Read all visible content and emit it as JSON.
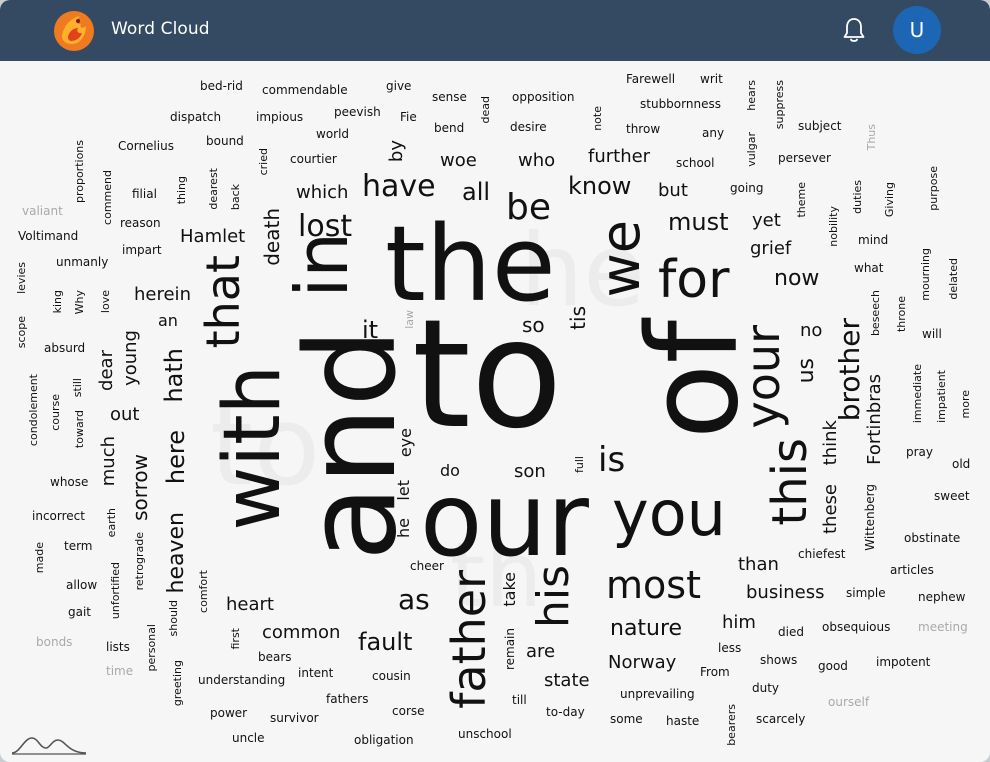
{
  "app": {
    "title": "Word Cloud",
    "avatar_initial": "U"
  },
  "icons": {
    "logo": "phoenix-logo",
    "notifications": "bell-icon",
    "footer": "mountain-icon"
  },
  "colors": {
    "header": "#344a63",
    "avatar": "#1d66b4",
    "word": "#111111",
    "faint_word": "#a9a9a9",
    "background": "#f6f6f6"
  },
  "words": [
    "the",
    "to",
    "and",
    "of",
    "our",
    "in",
    "with",
    "you",
    "that",
    "we",
    "for",
    "your",
    "this",
    "his",
    "father",
    "be",
    "lost",
    "most",
    "have",
    "is",
    "all",
    "know",
    "must",
    "brother",
    "hath",
    "here",
    "heaven",
    "sorrow",
    "Hamlet",
    "death",
    "fault",
    "as",
    "heart",
    "common",
    "nature",
    "Norway",
    "state",
    "business",
    "herein",
    "which",
    "who",
    "woe",
    "further",
    "but",
    "yet",
    "grief",
    "now",
    "no",
    "us",
    "think",
    "these",
    "young",
    "dear",
    "much",
    "out",
    "so",
    "it",
    "an",
    "tis",
    "eye",
    "let",
    "he",
    "do",
    "son",
    "than",
    "him",
    "are",
    "take",
    "remain",
    "Fortinbras",
    "Wittenberg",
    "by",
    "bed-rid",
    "commendable",
    "give",
    "sense",
    "dead",
    "opposition",
    "Farewell",
    "writ",
    "hears",
    "suppress",
    "dispatch",
    "impious",
    "peevish",
    "Fie",
    "bend",
    "desire",
    "note",
    "stubbornness",
    "throw",
    "any",
    "vulgar",
    "subject",
    "Thus",
    "Cornelius",
    "bound",
    "cried",
    "world",
    "courtier",
    "school",
    "persever",
    "proportions",
    "thing",
    "filial",
    "dearest",
    "back",
    "going",
    "theme",
    "duties",
    "Giving",
    "purpose",
    "commend",
    "reason",
    "valiant",
    "Voltimand",
    "impart",
    "nobility",
    "mind",
    "unmanly",
    "levies",
    "king",
    "Why",
    "love",
    "what",
    "mourning",
    "delated",
    "beseech",
    "throne",
    "will",
    "scope",
    "law",
    "absurd",
    "immediate",
    "impatient",
    "more",
    "condolement",
    "course",
    "still",
    "toward",
    "whose",
    "pray",
    "old",
    "incorrect",
    "sweet",
    "earth",
    "obstinate",
    "made",
    "term",
    "unfortified",
    "retrograde",
    "chiefest",
    "articles",
    "cheer",
    "allow",
    "comfort",
    "gait",
    "simple",
    "nephew",
    "should",
    "first",
    "personal",
    "obsequious",
    "meeting",
    "bonds",
    "lists",
    "less",
    "died",
    "time",
    "greeting",
    "bears",
    "intent",
    "cousin",
    "shows",
    "good",
    "impotent",
    "understanding",
    "From",
    "duty",
    "fathers",
    "till",
    "unprevailing",
    "ourself",
    "power",
    "survivor",
    "corse",
    "to-day",
    "some",
    "haste",
    "scarcely",
    "uncle",
    "obligation",
    "unschool",
    "bearers",
    "full"
  ]
}
